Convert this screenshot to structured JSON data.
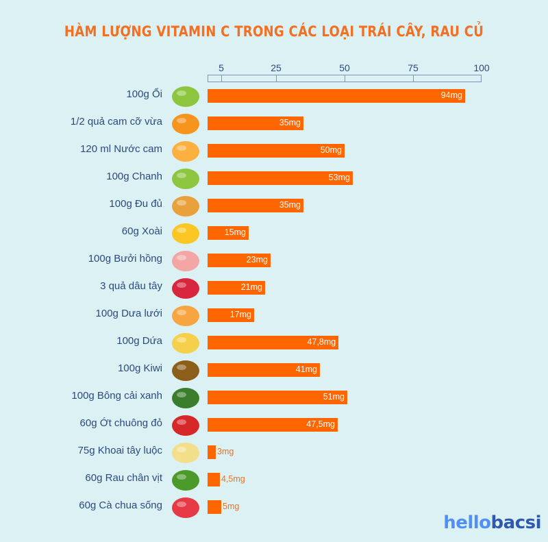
{
  "title": "HÀM LƯỢNG VITAMIN C TRONG CÁC LOẠI TRÁI CÂY, RAU CỦ",
  "logo": {
    "part1": "hello",
    "part2": "bacsi"
  },
  "colors": {
    "background": "#dcf1f3",
    "bar": "#ff6600",
    "title": "#f36f21",
    "label": "#2b4a7e"
  },
  "chart_data": {
    "type": "bar",
    "orientation": "horizontal",
    "title": "HÀM LƯỢNG VITAMIN C TRONG CÁC LOẠI TRÁI CÂY, RAU CỦ",
    "xlabel": "",
    "ylabel": "",
    "axis_ticks": [
      5,
      25,
      50,
      75,
      100
    ],
    "xlim": [
      0,
      100
    ],
    "unit": "mg",
    "categories": [
      "100g Ổi",
      "1/2 quả cam cỡ vừa",
      "120 ml Nước cam",
      "100g Chanh",
      "100g Đu đủ",
      "60g Xoài",
      "100g Bưởi hồng",
      "3 quả dâu tây",
      "100g Dưa lưới",
      "100g Dứa",
      "100g Kiwi",
      "100g Bông cải xanh",
      "60g Ớt chuông đỏ",
      "75g Khoai tây luộc",
      "60g Rau chân vịt",
      "60g Cà chua sống"
    ],
    "values": [
      94,
      35,
      50,
      53,
      35,
      15,
      23,
      21,
      17,
      47.8,
      41,
      51,
      47.5,
      3,
      4.5,
      5
    ],
    "value_labels": [
      "94mg",
      "35mg",
      "50mg",
      "53mg",
      "35mg",
      "15mg",
      "23mg",
      "21mg",
      "17mg",
      "47,8mg",
      "41mg",
      "51mg",
      "47,5mg",
      "3mg",
      "4,5mg",
      "5mg"
    ],
    "icons": [
      "guava-icon",
      "orange-half-icon",
      "orange-juice-icon",
      "lime-icon",
      "papaya-icon",
      "mango-icon",
      "pomelo-icon",
      "strawberry-icon",
      "cantaloupe-icon",
      "pineapple-icon",
      "kiwi-icon",
      "broccoli-icon",
      "red-bell-pepper-icon",
      "potato-icon",
      "spinach-icon",
      "tomato-icon"
    ],
    "grid": false,
    "legend": null
  }
}
